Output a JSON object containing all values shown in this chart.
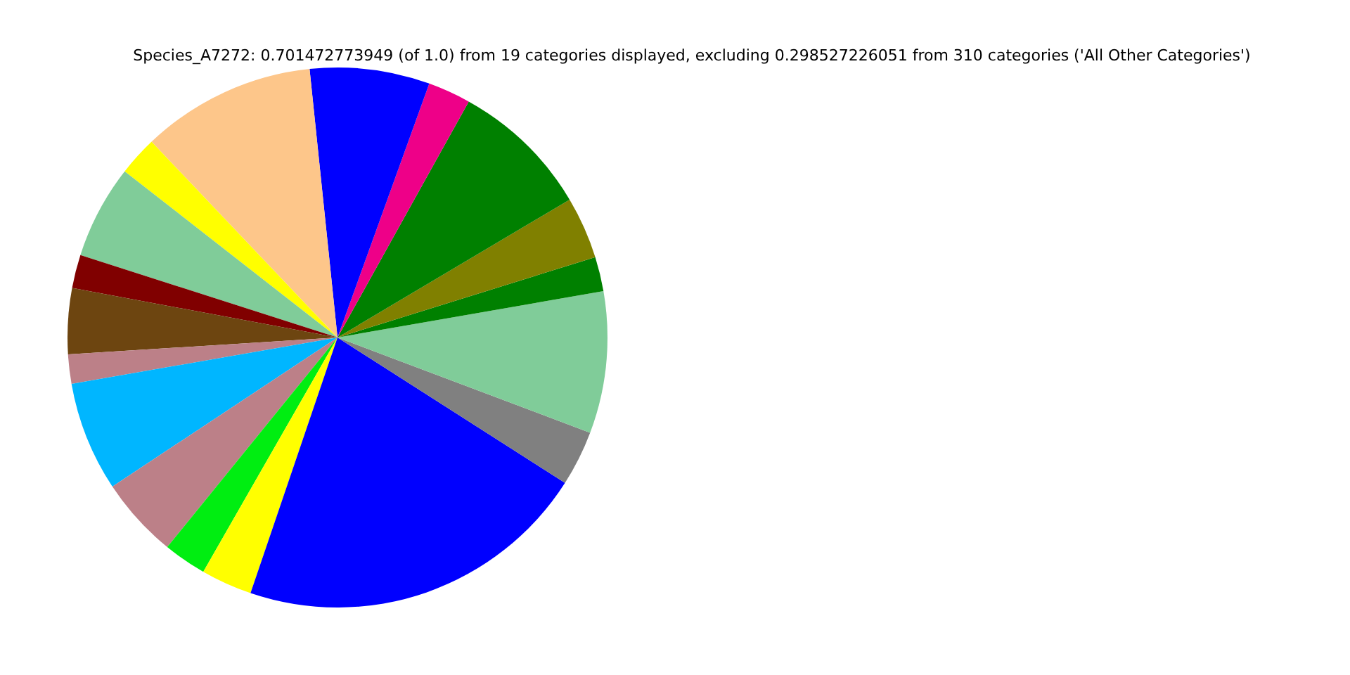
{
  "chart_data": {
    "type": "pie",
    "title": "Species_A7272: 0.701472773949 (of 1.0) from 19 categories displayed, excluding 0.298527226051 from 310 categories ('All Other Categories')",
    "categories": [
      null,
      null,
      null,
      null,
      null,
      null,
      null,
      null,
      null,
      null,
      null,
      null,
      null,
      null,
      null,
      null,
      null,
      null,
      null
    ],
    "values": [
      2.75,
      2.06,
      3.72,
      8.39,
      2.56,
      7.17,
      10.44,
      2.36,
      5.61,
      2.0,
      3.94,
      1.75,
      6.56,
      4.83,
      2.58,
      3.06,
      21.17,
      3.31,
      5.74
    ],
    "colors": [
      "#80cc99",
      "#008000",
      "#808000",
      "#008000",
      "#ee0088",
      "#0000ff",
      "#fdc68a",
      "#ffff00",
      "#80cc99",
      "#800000",
      "#6d4510",
      "#bc8088",
      "#00b6ff",
      "#bc8088",
      "#00ee11",
      "#ffff00",
      "#0000ff",
      "#808080",
      "#80cc99"
    ]
  }
}
